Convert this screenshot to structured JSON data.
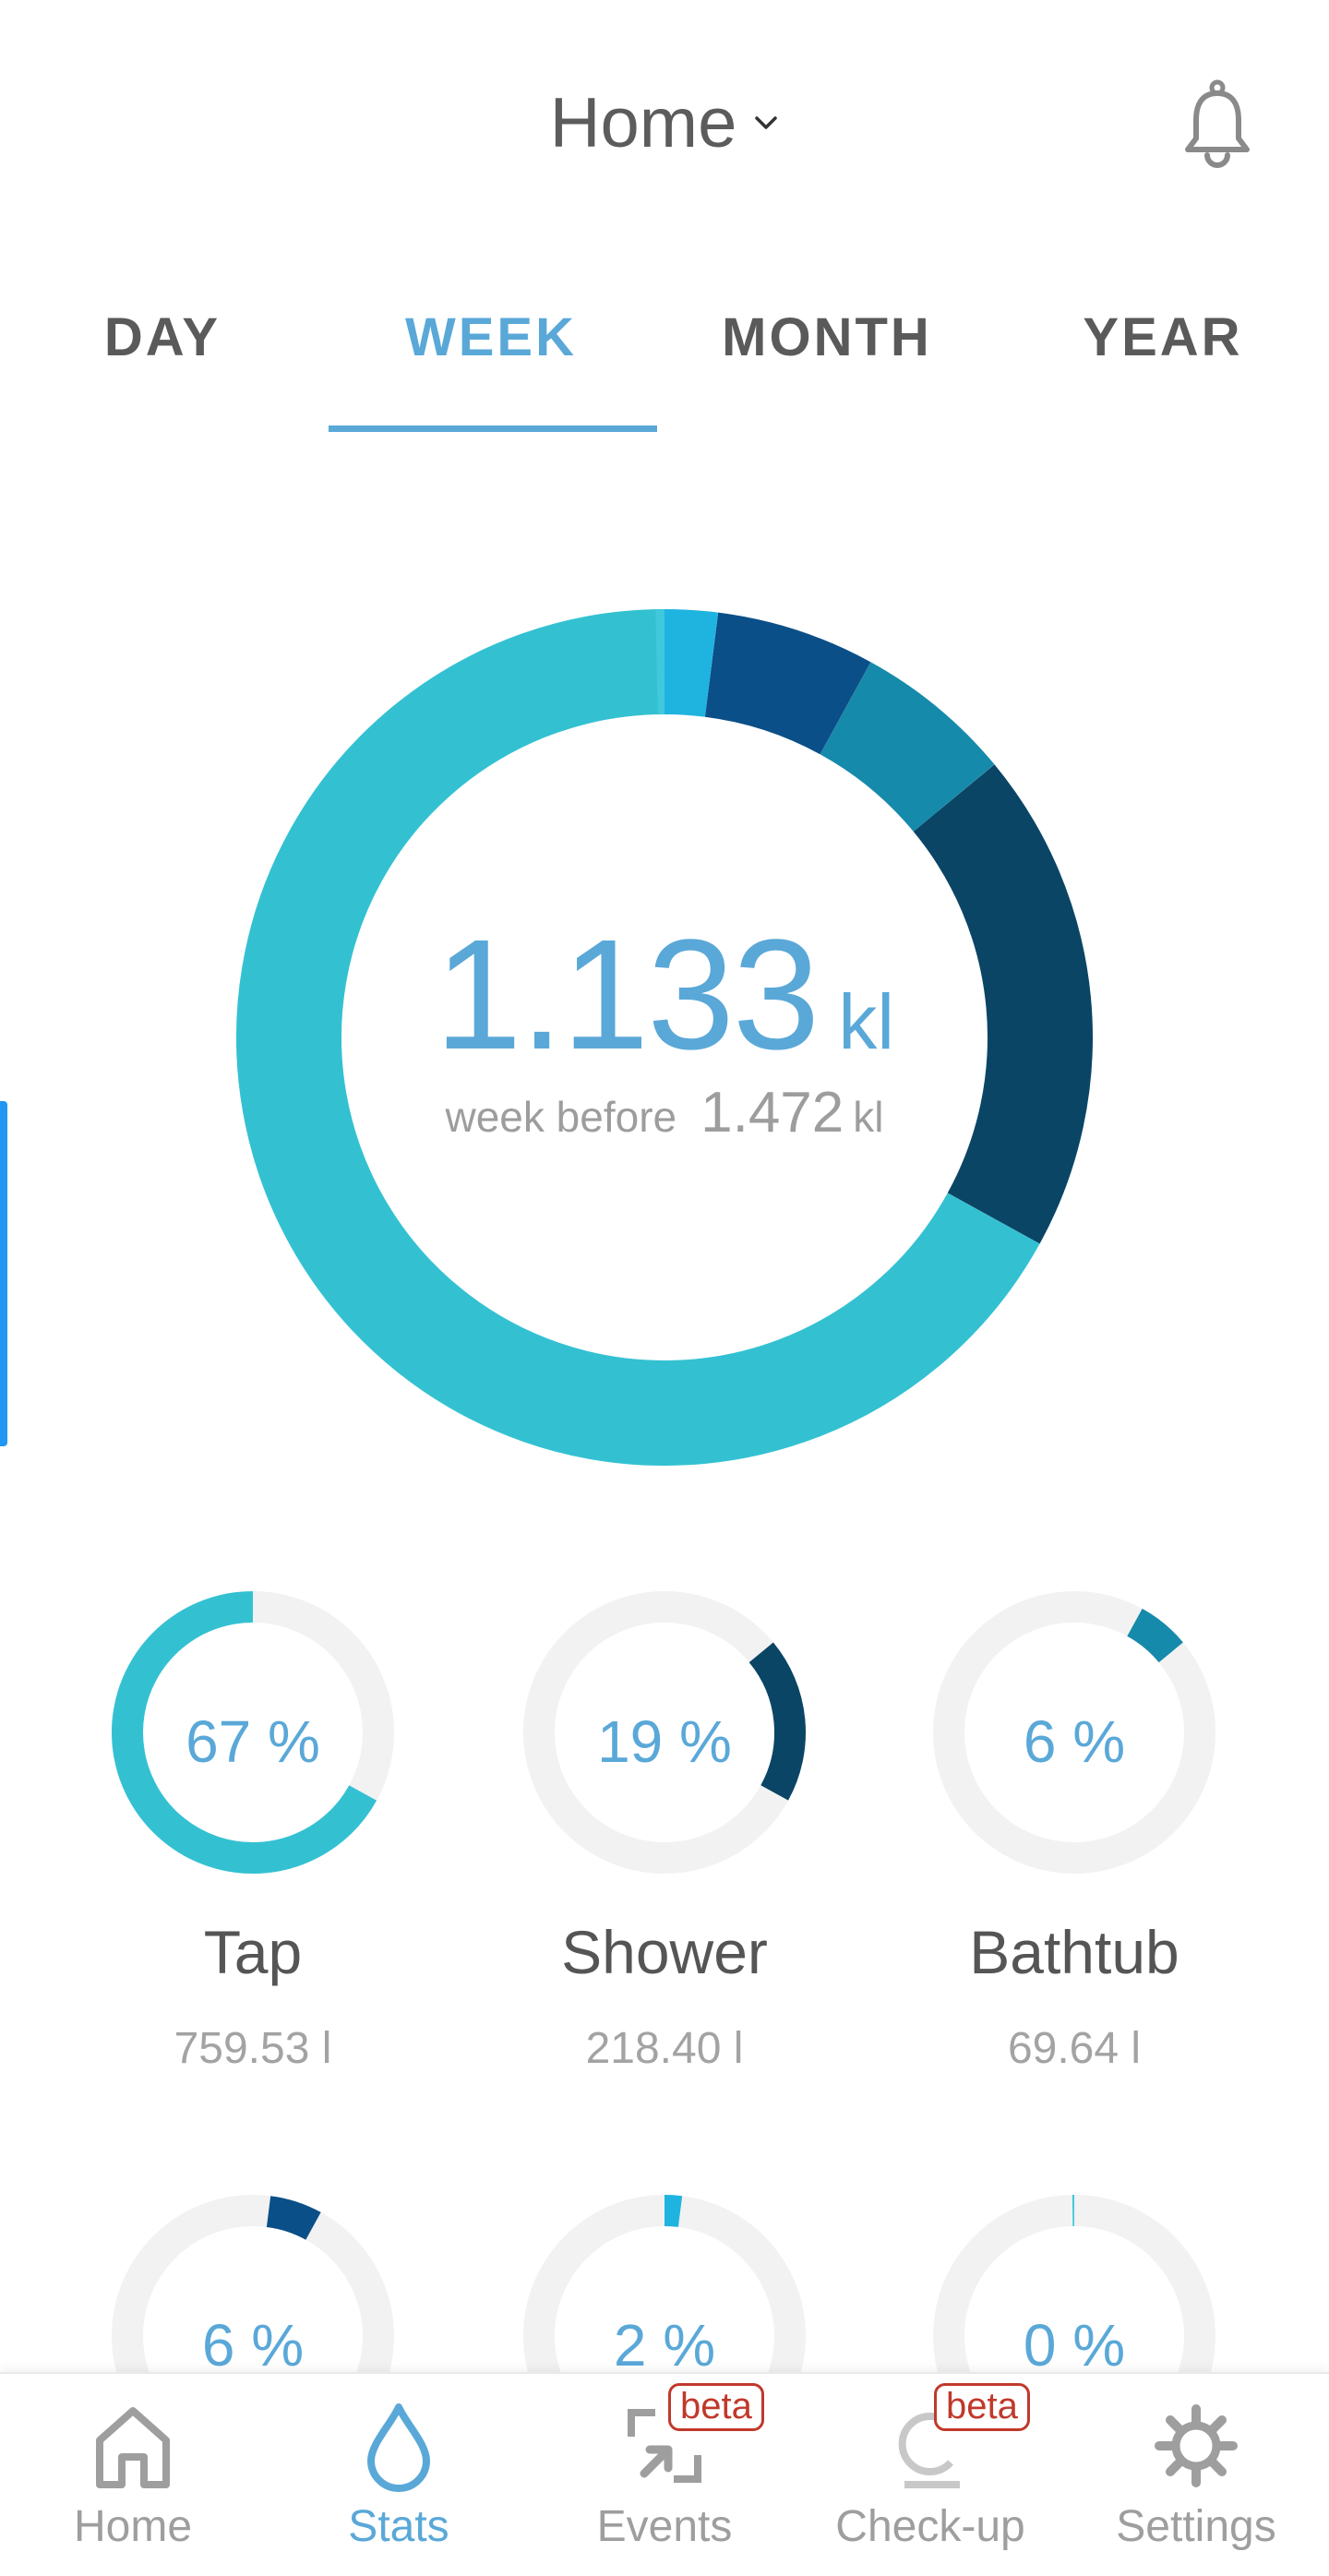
{
  "header": {
    "title": "Home"
  },
  "tabs": [
    {
      "label": "DAY",
      "active": false
    },
    {
      "label": "WEEK",
      "active": true
    },
    {
      "label": "MONTH",
      "active": false
    },
    {
      "label": "YEAR",
      "active": false
    }
  ],
  "summary": {
    "total_value": "1.133",
    "total_unit": "kl",
    "previous_label": "week before",
    "previous_value": "1.472",
    "previous_unit": "kl"
  },
  "chart_data": {
    "type": "pie",
    "segments": [
      {
        "name": "Tap",
        "percent": 67,
        "value": "759.53 l",
        "color": "#33c1d2"
      },
      {
        "name": "Shower",
        "percent": 19,
        "value": "218.40 l",
        "color": "#0a4565"
      },
      {
        "name": "Bathtub",
        "percent": 6,
        "value": "69.64 l",
        "color": "#168aab"
      },
      {
        "name": "",
        "percent": 6,
        "value": "",
        "color": "#0a4f88"
      },
      {
        "name": "",
        "percent": 2,
        "value": "",
        "color": "#1fb3e0"
      },
      {
        "name": "",
        "percent": 0,
        "value": "",
        "color": "#40c8dc"
      }
    ]
  },
  "cards": [
    {
      "percent_label": "67 %",
      "name": "Tap",
      "value": "759.53 l"
    },
    {
      "percent_label": "19 %",
      "name": "Shower",
      "value": "218.40 l"
    },
    {
      "percent_label": "6 %",
      "name": "Bathtub",
      "value": "69.64 l"
    },
    {
      "percent_label": "6 %"
    },
    {
      "percent_label": "2 %"
    },
    {
      "percent_label": "0 %"
    }
  ],
  "bottom_nav": [
    {
      "label": "Home",
      "icon": "home-icon",
      "active": false
    },
    {
      "label": "Stats",
      "icon": "water-drop-icon",
      "active": true
    },
    {
      "label": "Events",
      "icon": "events-icon",
      "active": false,
      "badge": "beta"
    },
    {
      "label": "Check-up",
      "icon": "checkup-icon",
      "active": false,
      "badge": "beta"
    },
    {
      "label": "Settings",
      "icon": "gear-icon",
      "active": false
    }
  ],
  "colors": {
    "accent": "#5aa8d8",
    "ring_background": "#f2f2f2",
    "badge": "#c0392b"
  }
}
